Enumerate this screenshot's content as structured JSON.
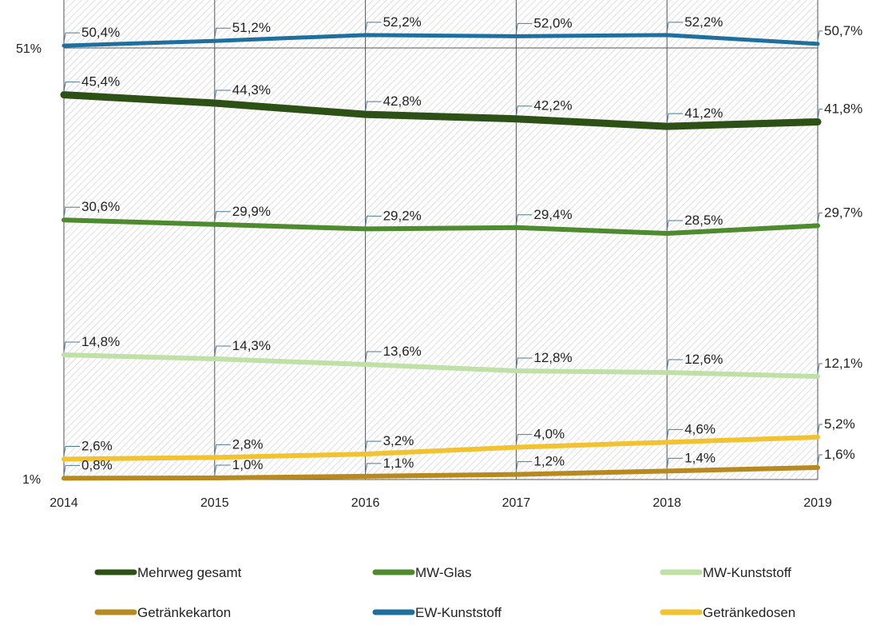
{
  "chart_data": {
    "type": "line",
    "x": [
      "2014",
      "2015",
      "2016",
      "2017",
      "2018",
      "2019"
    ],
    "y_axis_labels": {
      "top": "51%",
      "bottom": "1%"
    },
    "series": [
      {
        "name": "Mehrweg gesamt",
        "color": "#2d5016",
        "values": [
          45.4,
          44.3,
          42.8,
          42.2,
          41.2,
          41.8
        ],
        "labels": [
          "45,4%",
          "44,3%",
          "42,8%",
          "42,2%",
          "41,2%",
          "41,8%"
        ]
      },
      {
        "name": "MW-Glas",
        "color": "#4e8a2e",
        "values": [
          30.6,
          29.9,
          29.2,
          29.4,
          28.5,
          29.7
        ],
        "labels": [
          "30,6%",
          "29,9%",
          "29,2%",
          "29,4%",
          "28,5%",
          "29,7%"
        ]
      },
      {
        "name": "MW-Kunststoff",
        "color": "#bfe0a6",
        "values": [
          14.8,
          14.3,
          13.6,
          12.8,
          12.6,
          12.1
        ],
        "labels": [
          "14,8%",
          "14,3%",
          "13,6%",
          "12,8%",
          "12,6%",
          "12,1%"
        ]
      },
      {
        "name": "Getränkekarton",
        "color": "#b8891f",
        "values": [
          0.8,
          1.0,
          1.1,
          1.2,
          1.4,
          1.6
        ],
        "labels": [
          "0,8%",
          "1,0%",
          "1,1%",
          "1,2%",
          "1,4%",
          "1,6%"
        ]
      },
      {
        "name": "EW-Kunststoff",
        "color": "#1f6f9e",
        "values": [
          50.4,
          51.2,
          52.2,
          52.0,
          52.2,
          50.7
        ],
        "labels": [
          "50,4%",
          "51,2%",
          "52,2%",
          "52,0%",
          "52,2%",
          "50,7%"
        ]
      },
      {
        "name": "Getränkedosen",
        "color": "#f2c230",
        "values": [
          2.6,
          2.8,
          3.2,
          4.0,
          4.6,
          5.2
        ],
        "labels": [
          "2,6%",
          "2,8%",
          "3,2%",
          "4,0%",
          "4,6%",
          "5,2%"
        ]
      }
    ],
    "grid": "vertical",
    "legend_position": "bottom"
  }
}
